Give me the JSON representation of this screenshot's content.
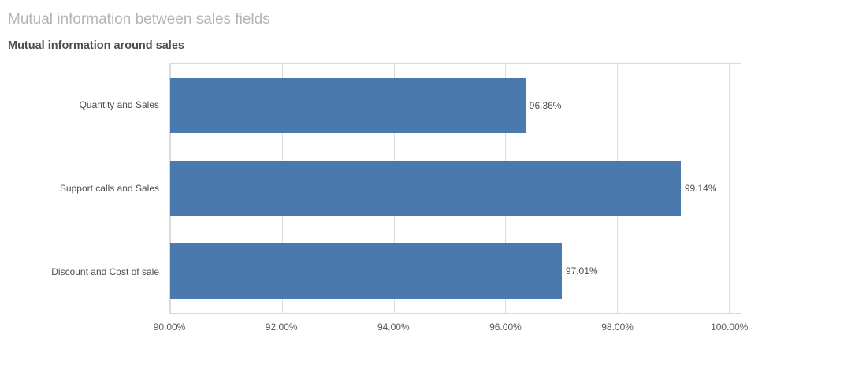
{
  "page": {
    "title": "Mutual information between sales fields",
    "subtitle": "Mutual information around sales"
  },
  "colors": {
    "bar": "#4a7aad",
    "gridline": "#dcdcdc",
    "plot_border": "#d9d9d9",
    "sheet_title_text": "#b4b4b4",
    "chart_title_text": "#4d4d4d",
    "axis_text": "#595959"
  },
  "chart_data": {
    "type": "bar",
    "orientation": "horizontal",
    "title": "Mutual information around sales",
    "categories": [
      "Quantity and Sales",
      "Support calls and Sales",
      "Discount and Cost of sale"
    ],
    "values": [
      96.36,
      99.14,
      97.01
    ],
    "value_labels": [
      "96.36%",
      "99.14%",
      "97.01%"
    ],
    "x_ticks": [
      {
        "value": 90,
        "label": "90.00%"
      },
      {
        "value": 92,
        "label": "92.00%"
      },
      {
        "value": 94,
        "label": "94.00%"
      },
      {
        "value": 96,
        "label": "96.00%"
      },
      {
        "value": 98,
        "label": "98.00%"
      },
      {
        "value": 100,
        "label": "100.00%"
      }
    ],
    "xlim": [
      90,
      100
    ],
    "xlabel": "",
    "ylabel": "",
    "grid": true,
    "legend": false
  }
}
